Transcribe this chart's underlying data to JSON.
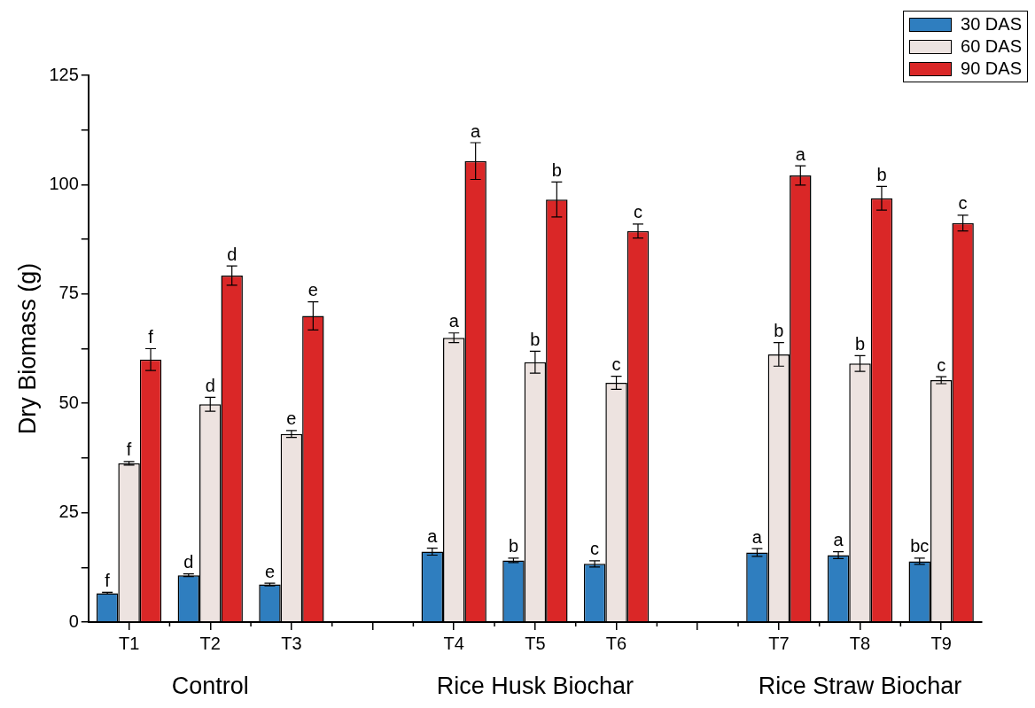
{
  "chart_data": {
    "type": "bar",
    "ylabel": "Dry Biomass (g)",
    "categories": [
      "T1",
      "T2",
      "T3",
      null,
      "T4",
      "T5",
      "T6",
      null,
      "T7",
      "T8",
      "T9"
    ],
    "series": [
      {
        "name": "30 DAS",
        "color": "#2f7ebf",
        "values": [
          6.6,
          10.7,
          8.6,
          null,
          16.1,
          14.1,
          13.3,
          null,
          15.9,
          15.3,
          13.9
        ],
        "errors": [
          0.2,
          0.3,
          0.3,
          null,
          0.8,
          0.5,
          0.7,
          null,
          0.9,
          0.8,
          0.7
        ],
        "value_labels": [
          "f",
          "d",
          "e",
          null,
          "a",
          "b",
          "c",
          null,
          "a",
          "a",
          "bc"
        ]
      },
      {
        "name": "60 DAS",
        "color": "#ede3e0",
        "values": [
          36.3,
          49.8,
          43.0,
          null,
          65.0,
          59.4,
          54.7,
          null,
          61.2,
          59.1,
          55.3
        ],
        "errors": [
          0.4,
          1.6,
          0.8,
          null,
          1.1,
          2.5,
          1.5,
          null,
          2.7,
          1.8,
          0.8
        ],
        "value_labels": [
          "f",
          "d",
          "e",
          null,
          "a",
          "b",
          "c",
          null,
          "b",
          "b",
          "c"
        ]
      },
      {
        "name": "90 DAS",
        "color": "#da2727",
        "values": [
          60.0,
          79.2,
          70.0,
          null,
          105.4,
          96.6,
          89.4,
          null,
          102.1,
          96.9,
          91.2
        ],
        "errors": [
          2.5,
          2.2,
          3.2,
          null,
          4.2,
          4.0,
          1.6,
          null,
          2.2,
          2.7,
          1.8
        ],
        "value_labels": [
          "f",
          "d",
          "e",
          null,
          "a",
          "b",
          "c",
          null,
          "a",
          "b",
          "c"
        ]
      }
    ],
    "ylim": [
      0,
      125
    ],
    "yticks": [
      0,
      {
        "value": 12.5,
        "label": null
      },
      25,
      {
        "value": 37.5,
        "label": null
      },
      50,
      {
        "value": 62.5,
        "label": null
      },
      75,
      {
        "value": 87.5,
        "label": null
      },
      100,
      {
        "value": 112.5,
        "label": null
      },
      125
    ],
    "annotations": [
      "Control",
      "Rice Husk Biochar",
      "Rice Straw Biochar"
    ],
    "grid": false,
    "legend": "top right"
  }
}
